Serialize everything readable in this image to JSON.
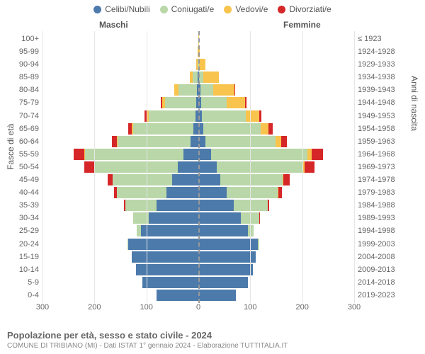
{
  "legend": [
    {
      "label": "Celibi/Nubili",
      "color": "#4c7aab"
    },
    {
      "label": "Coniugati/e",
      "color": "#b9d7a8"
    },
    {
      "label": "Vedovi/e",
      "color": "#f9c44d"
    },
    {
      "label": "Divorziati/e",
      "color": "#d62728"
    }
  ],
  "headers": {
    "left": "Maschi",
    "right": "Femmine"
  },
  "axis_titles": {
    "left": "Fasce di età",
    "right": "Anni di nascita"
  },
  "xaxis": {
    "max": 300,
    "ticks": [
      300,
      200,
      100,
      0,
      100,
      200,
      300
    ]
  },
  "colors": {
    "grid": "#e6e6e6",
    "zero": "#999999",
    "bg": "#ffffff",
    "text": "#666666"
  },
  "rows": [
    {
      "age": "100+",
      "birth": "≤ 1923",
      "m": [
        0,
        0,
        0,
        0
      ],
      "f": [
        0,
        0,
        1,
        0
      ]
    },
    {
      "age": "95-99",
      "birth": "1924-1928",
      "m": [
        0,
        0,
        1,
        0
      ],
      "f": [
        0,
        0,
        3,
        0
      ]
    },
    {
      "age": "90-94",
      "birth": "1929-1933",
      "m": [
        0,
        1,
        3,
        0
      ],
      "f": [
        0,
        1,
        13,
        0
      ]
    },
    {
      "age": "85-89",
      "birth": "1934-1938",
      "m": [
        1,
        10,
        5,
        0
      ],
      "f": [
        2,
        8,
        30,
        0
      ]
    },
    {
      "age": "80-84",
      "birth": "1939-1943",
      "m": [
        3,
        35,
        8,
        1
      ],
      "f": [
        4,
        25,
        40,
        2
      ]
    },
    {
      "age": "75-79",
      "birth": "1944-1948",
      "m": [
        4,
        60,
        6,
        2
      ],
      "f": [
        5,
        50,
        35,
        3
      ]
    },
    {
      "age": "70-74",
      "birth": "1949-1953",
      "m": [
        6,
        90,
        4,
        4
      ],
      "f": [
        7,
        85,
        25,
        5
      ]
    },
    {
      "age": "65-69",
      "birth": "1954-1958",
      "m": [
        10,
        115,
        3,
        7
      ],
      "f": [
        10,
        110,
        15,
        8
      ]
    },
    {
      "age": "60-64",
      "birth": "1959-1963",
      "m": [
        15,
        140,
        2,
        10
      ],
      "f": [
        14,
        135,
        10,
        12
      ]
    },
    {
      "age": "55-59",
      "birth": "1964-1968",
      "m": [
        28,
        190,
        2,
        20
      ],
      "f": [
        25,
        185,
        8,
        22
      ]
    },
    {
      "age": "50-54",
      "birth": "1969-1973",
      "m": [
        40,
        160,
        1,
        18
      ],
      "f": [
        35,
        165,
        5,
        18
      ]
    },
    {
      "age": "45-49",
      "birth": "1974-1978",
      "m": [
        50,
        115,
        0,
        10
      ],
      "f": [
        42,
        120,
        2,
        12
      ]
    },
    {
      "age": "40-44",
      "birth": "1979-1983",
      "m": [
        62,
        95,
        0,
        6
      ],
      "f": [
        55,
        98,
        1,
        7
      ]
    },
    {
      "age": "35-39",
      "birth": "1984-1988",
      "m": [
        80,
        60,
        0,
        3
      ],
      "f": [
        68,
        65,
        0,
        4
      ]
    },
    {
      "age": "30-34",
      "birth": "1989-1993",
      "m": [
        95,
        30,
        0,
        1
      ],
      "f": [
        82,
        35,
        0,
        2
      ]
    },
    {
      "age": "25-29",
      "birth": "1994-1998",
      "m": [
        110,
        8,
        0,
        0
      ],
      "f": [
        95,
        12,
        0,
        0
      ]
    },
    {
      "age": "20-24",
      "birth": "1999-2003",
      "m": [
        135,
        1,
        0,
        0
      ],
      "f": [
        115,
        2,
        0,
        0
      ]
    },
    {
      "age": "15-19",
      "birth": "2004-2008",
      "m": [
        128,
        0,
        0,
        0
      ],
      "f": [
        110,
        0,
        0,
        0
      ]
    },
    {
      "age": "10-14",
      "birth": "2009-2013",
      "m": [
        120,
        0,
        0,
        0
      ],
      "f": [
        105,
        0,
        0,
        0
      ]
    },
    {
      "age": "5-9",
      "birth": "2014-2018",
      "m": [
        108,
        0,
        0,
        0
      ],
      "f": [
        95,
        0,
        0,
        0
      ]
    },
    {
      "age": "0-4",
      "birth": "2019-2023",
      "m": [
        80,
        0,
        0,
        0
      ],
      "f": [
        72,
        0,
        0,
        0
      ]
    }
  ],
  "footer": {
    "title": "Popolazione per età, sesso e stato civile - 2024",
    "subtitle": "COMUNE DI TRIBIANO (MI) - Dati ISTAT 1° gennaio 2024 - Elaborazione TUTTITALIA.IT"
  }
}
